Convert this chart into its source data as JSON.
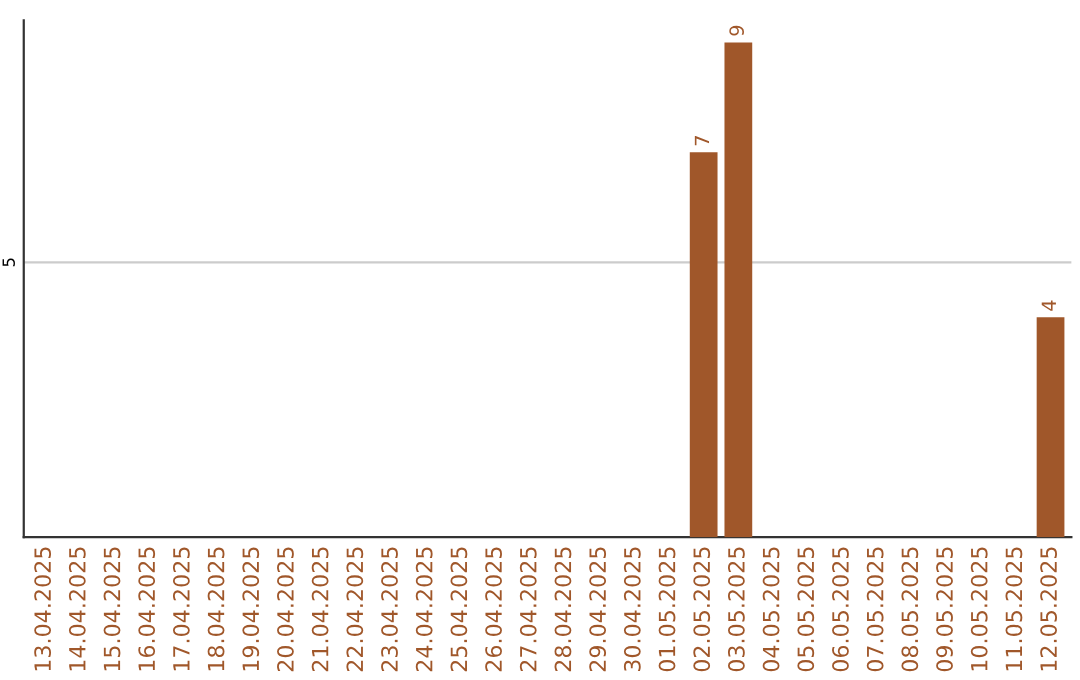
{
  "chart_data": {
    "type": "bar",
    "categories": [
      "13.04.2025",
      "14.04.2025",
      "15.04.2025",
      "16.04.2025",
      "17.04.2025",
      "18.04.2025",
      "19.04.2025",
      "20.04.2025",
      "21.04.2025",
      "22.04.2025",
      "23.04.2025",
      "24.04.2025",
      "25.04.2025",
      "26.04.2025",
      "27.04.2025",
      "28.04.2025",
      "29.04.2025",
      "30.04.2025",
      "01.05.2025",
      "02.05.2025",
      "03.05.2025",
      "04.05.2025",
      "05.05.2025",
      "06.05.2025",
      "07.05.2025",
      "08.05.2025",
      "09.05.2025",
      "10.05.2025",
      "11.05.2025",
      "12.05.2025"
    ],
    "values": [
      null,
      null,
      null,
      null,
      null,
      null,
      null,
      null,
      null,
      null,
      null,
      null,
      null,
      null,
      null,
      null,
      null,
      null,
      null,
      7,
      9,
      null,
      null,
      null,
      null,
      null,
      null,
      null,
      null,
      4
    ],
    "value_labels": [
      null,
      null,
      null,
      null,
      null,
      null,
      null,
      null,
      null,
      null,
      null,
      null,
      null,
      null,
      null,
      null,
      null,
      null,
      null,
      "7",
      "9",
      null,
      null,
      null,
      null,
      null,
      null,
      null,
      null,
      "4"
    ],
    "color": "#a0572a",
    "ylim": [
      0,
      9.4
    ],
    "yticks": [
      5
    ],
    "grid": "y"
  }
}
